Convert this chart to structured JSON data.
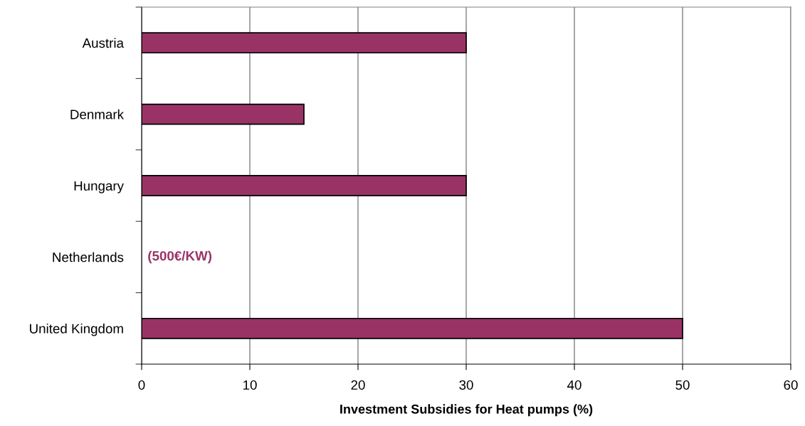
{
  "chart_data": {
    "type": "bar",
    "orientation": "horizontal",
    "xlabel": "Investment Subsidies for Heat pumps (%)",
    "categories": [
      "Austria",
      "Denmark",
      "Hungary",
      "Netherlands",
      "United Kingdom"
    ],
    "values": [
      30,
      15,
      30,
      null,
      50
    ],
    "color": "#993366",
    "xlim": [
      0,
      60
    ],
    "xticks": [
      0,
      10,
      20,
      30,
      40,
      50,
      60
    ],
    "grid": "x",
    "annotations": [
      "(500€/KW)"
    ]
  }
}
